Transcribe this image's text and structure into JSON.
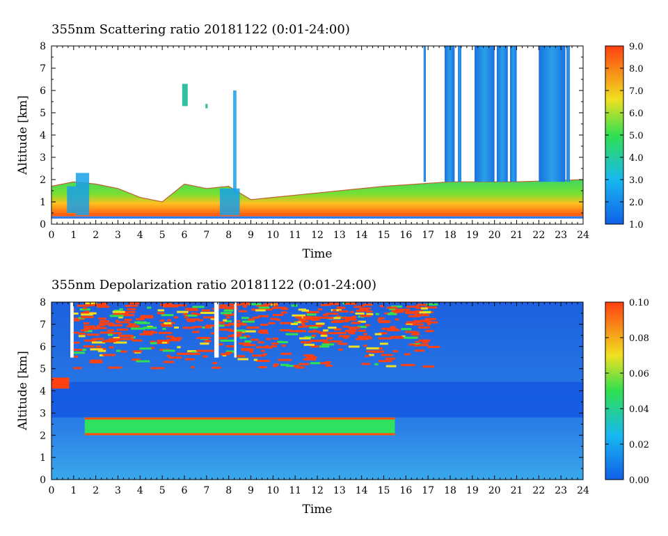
{
  "chart_data": [
    {
      "type": "heatmap",
      "title": "355nm Scattering ratio  20181122 (0:01-24:00)",
      "xlabel": "Time",
      "ylabel": "Altitude [km]",
      "xlim": [
        0,
        24
      ],
      "ylim": [
        0,
        8
      ],
      "x_ticks": [
        "0",
        "1",
        "2",
        "3",
        "4",
        "5",
        "6",
        "7",
        "8",
        "9",
        "10",
        "11",
        "12",
        "13",
        "14",
        "15",
        "16",
        "17",
        "18",
        "19",
        "20",
        "21",
        "22",
        "23",
        "24"
      ],
      "y_ticks": [
        "0",
        "1",
        "2",
        "3",
        "4",
        "5",
        "6",
        "7",
        "8"
      ],
      "colorbar": {
        "range": [
          1.0,
          9.0
        ],
        "labels": [
          "1.0",
          "2.0",
          "3.0",
          "4.0",
          "5.0",
          "6.0",
          "7.0",
          "8.0",
          "9.0"
        ],
        "colors": [
          "#1060e8",
          "#18b8f0",
          "#30e050",
          "#f0e020",
          "#ff4010"
        ]
      },
      "features": {
        "surface_layer_top_km": 0.35,
        "aerosol_layer": [
          {
            "x": 0.0,
            "top_km": 1.7
          },
          {
            "x": 1.0,
            "top_km": 1.9
          },
          {
            "x": 2.0,
            "top_km": 1.8
          },
          {
            "x": 3.0,
            "top_km": 1.6
          },
          {
            "x": 4.0,
            "top_km": 1.2
          },
          {
            "x": 5.0,
            "top_km": 1.0
          },
          {
            "x": 6.0,
            "top_km": 1.8
          },
          {
            "x": 7.0,
            "top_km": 1.6
          },
          {
            "x": 8.0,
            "top_km": 1.7
          },
          {
            "x": 9.0,
            "top_km": 1.1
          },
          {
            "x": 12.0,
            "top_km": 1.4
          },
          {
            "x": 15.0,
            "top_km": 1.7
          },
          {
            "x": 18.0,
            "top_km": 1.9
          },
          {
            "x": 21.0,
            "top_km": 1.9
          },
          {
            "x": 24.0,
            "top_km": 2.0
          }
        ],
        "cloud_columns_hours": [
          [
            16.8,
            16.9
          ],
          [
            17.75,
            18.2
          ],
          [
            18.35,
            18.5
          ],
          [
            19.1,
            20.0
          ],
          [
            20.1,
            20.6
          ],
          [
            20.7,
            21.0
          ],
          [
            22.0,
            23.2
          ],
          [
            23.25,
            23.4
          ]
        ]
      }
    },
    {
      "type": "heatmap",
      "title": "355nm Depolarization ratio  20181122 (0:01-24:00)",
      "xlabel": "Time",
      "ylabel": "Altitude [km]",
      "xlim": [
        0,
        24
      ],
      "ylim": [
        0,
        8
      ],
      "x_ticks": [
        "0",
        "1",
        "2",
        "3",
        "4",
        "5",
        "6",
        "7",
        "8",
        "9",
        "10",
        "11",
        "12",
        "13",
        "14",
        "15",
        "16",
        "17",
        "18",
        "19",
        "20",
        "21",
        "22",
        "23",
        "24"
      ],
      "y_ticks": [
        "0",
        "1",
        "2",
        "3",
        "4",
        "5",
        "6",
        "7",
        "8"
      ],
      "colorbar": {
        "range": [
          0.0,
          0.1
        ],
        "labels": [
          "0.00",
          "0.02",
          "0.04",
          "0.06",
          "0.08",
          "0.10"
        ],
        "colors": [
          "#1060e8",
          "#18b8f0",
          "#30e050",
          "#f0e020",
          "#ff4010"
        ]
      },
      "features": {
        "depol_layer_km": [
          2.0,
          2.8
        ],
        "depol_layer_hours": [
          1.5,
          15.5
        ],
        "upper_high_depol_km": [
          5.0,
          8.0
        ],
        "upper_high_depol_hours": [
          0.8,
          17.0
        ]
      }
    }
  ]
}
